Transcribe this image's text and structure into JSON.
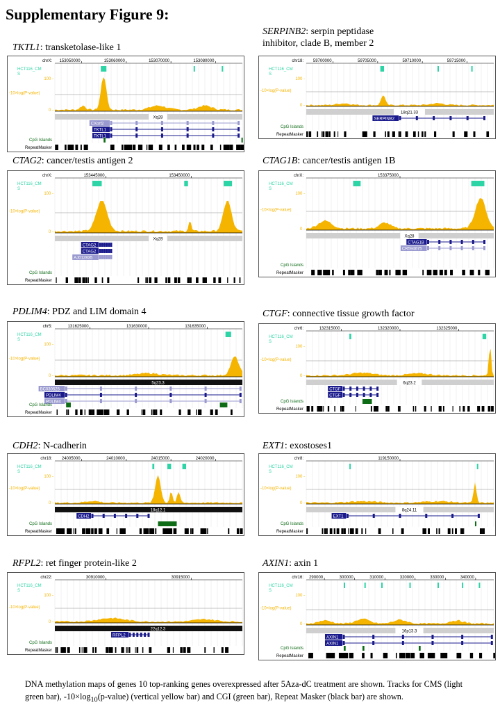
{
  "figure_title": "Supplementary Figure 9:",
  "colors": {
    "cms": "#2dd4a6",
    "signal": "#f5b400",
    "cgi": "#0e6b16",
    "gene": "#1a1a8c",
    "gene_light": "#9a9ad0",
    "band": "#cfcfcf",
    "band_dark": "#555555"
  },
  "track_labels": {
    "cms": "HCT116_CM",
    "cms2": "S",
    "signal": "-10×log(P-value)",
    "y100": "100 -",
    "y0": "0 -",
    "cgi": "CpG Islands",
    "rmsk": "RepeatMasker"
  },
  "panels": [
    {
      "gene": "TKTL1",
      "desc": ": transketolase-like 1",
      "chrom": "chrX:",
      "ticks": [
        "153050000",
        "153060000",
        "153070000",
        "153080000"
      ],
      "band": "Xq28",
      "band_style": "light",
      "genes": [
        "CXorf2",
        "TKTL1",
        "TKTL1"
      ]
    },
    {
      "gene": "SERPINB2",
      "desc": ": serpin peptidase",
      "desc2": "inhibitor, clade B, member 2",
      "chrom": "chr18:",
      "ticks": [
        "59700000",
        "59705000",
        "59710000",
        "59715000"
      ],
      "band": "18q21.33",
      "band_style": "light",
      "genes": [
        "SERPINB2"
      ]
    },
    {
      "gene": "CTAG2",
      "desc": ": cancer/testis antigen 2",
      "chrom": "chrX:",
      "ticks": [
        "153445000",
        "153450000"
      ],
      "band": "Xq28",
      "band_style": "light",
      "genes": [
        "CTAG2",
        "CTAG2",
        "AJ012835"
      ]
    },
    {
      "gene": "CTAG1B",
      "desc": ": cancer/testis antigen 1B",
      "chrom": "chrX:",
      "ticks": [
        "153375000"
      ],
      "band": "Xq28",
      "band_style": "light",
      "genes": [
        "CTAG1B",
        "CR594675"
      ]
    },
    {
      "gene": "PDLIM4",
      "desc": ": PDZ and LIM domain 4",
      "chrom": "chr5:",
      "ticks": [
        "131625000",
        "131630000",
        "131635000"
      ],
      "band": "5q23.3",
      "band_style": "dark",
      "genes": [
        "BC030525",
        "PDLIM4",
        "PDLIM4"
      ]
    },
    {
      "gene": "CTGF",
      "desc": ": connective tissue growth factor",
      "chrom": "chr6:",
      "ticks": [
        "132315000",
        "132320000",
        "132325000"
      ],
      "band": "6q23.2",
      "band_style": "light",
      "genes": [
        "CTGF",
        "CTGF"
      ]
    },
    {
      "gene": "CDH2",
      "desc": ": N-cadherin",
      "chrom": "chr18:",
      "ticks": [
        "24005000",
        "24010000",
        "24015000",
        "24020000"
      ],
      "band": "18q12.1",
      "band_style": "dark",
      "genes": [
        "CDH2"
      ]
    },
    {
      "gene": "EXT1",
      "desc": ": exostoses1",
      "chrom": "chr8:",
      "ticks": [
        "119150000"
      ],
      "band": "8q24.11",
      "band_style": "light",
      "genes": [
        "EXT1"
      ]
    },
    {
      "gene": "RFPL2",
      "desc": ": ret finger protein-like 2",
      "chrom": "chr22:",
      "ticks": [
        "30910000",
        "30915000"
      ],
      "band": "22q12.3",
      "band_style": "dark",
      "genes": [
        "RFPL2"
      ]
    },
    {
      "gene": "AXIN1",
      "desc": ": axin 1",
      "chrom": "chr16:",
      "ticks": [
        "290000",
        "300000",
        "310000",
        "320000",
        "330000",
        "340000"
      ],
      "band": "16p13.3",
      "band_style": "light",
      "genes": [
        "AXIN1",
        "AXIN1"
      ]
    }
  ],
  "caption": {
    "part1": "DNA methylation maps of genes 10 top-ranking genes overexpressed after 5Aza-dC treatment are shown. Tracks for CMS (light green bar), -10×log",
    "sub": "10",
    "part2": "(p-value) (vertical yellow bar) and CGI (green bar), Repeat Masker (black bar) are shown."
  }
}
